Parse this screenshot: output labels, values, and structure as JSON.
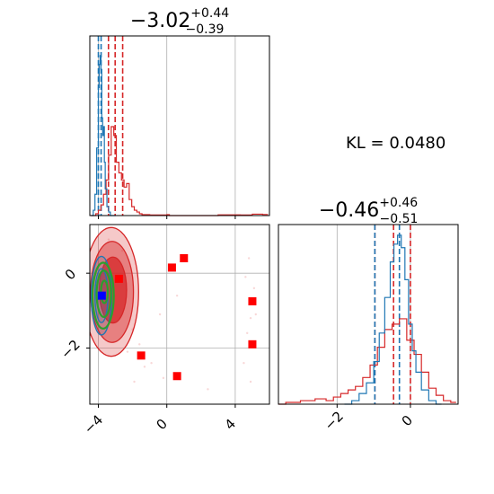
{
  "chart_data": {
    "type": "corner",
    "annotation": "KL = 0.0480",
    "colors": {
      "red": "#d62728",
      "blue": "#1f77b4",
      "green": "#2ca02c",
      "marker_red": "#ff0000",
      "marker_blue": "#0000ff",
      "grid": "#b0b0b0"
    },
    "panels": [
      {
        "id": "hist-param1",
        "type": "histogram",
        "title": {
          "main": "−3.02",
          "sup": "+0.44",
          "sub": "−0.39"
        },
        "xlim": [
          -4.5,
          6.0
        ],
        "x_ticks": [
          -4,
          0,
          4
        ],
        "show_x_tick_labels": false,
        "red_quantile_lines": [
          -3.41,
          -3.02,
          -2.58
        ],
        "blue_quantile_lines": [
          -4.0,
          -3.84
        ],
        "red_hist": [
          [
            -4.45,
            0.0
          ],
          [
            -4.3,
            0.0
          ],
          [
            -4.15,
            0.01
          ],
          [
            -4.0,
            0.03
          ],
          [
            -3.85,
            0.06
          ],
          [
            -3.7,
            0.12
          ],
          [
            -3.55,
            0.2
          ],
          [
            -3.4,
            0.34
          ],
          [
            -3.25,
            0.5
          ],
          [
            -3.1,
            0.45
          ],
          [
            -2.95,
            0.3
          ],
          [
            -2.8,
            0.24
          ],
          [
            -2.65,
            0.2
          ],
          [
            -2.5,
            0.16
          ],
          [
            -2.35,
            0.18
          ],
          [
            -2.2,
            0.09
          ],
          [
            -2.05,
            0.05
          ],
          [
            -1.9,
            0.03
          ],
          [
            -1.75,
            0.02
          ],
          [
            -1.6,
            0.01
          ],
          [
            -1.45,
            0.005
          ],
          [
            -1.0,
            0.003
          ],
          [
            0.0,
            0.005
          ],
          [
            0.15,
            0.0
          ],
          [
            3.0,
            0.004
          ],
          [
            4.3,
            0.003
          ],
          [
            5.0,
            0.008
          ],
          [
            5.6,
            0.006
          ]
        ],
        "blue_hist": [
          [
            -4.4,
            0.0
          ],
          [
            -4.3,
            0.03
          ],
          [
            -4.2,
            0.12
          ],
          [
            -4.1,
            0.38
          ],
          [
            -4.0,
            0.72
          ],
          [
            -3.95,
            0.85
          ],
          [
            -3.9,
            0.9
          ],
          [
            -3.85,
            0.82
          ],
          [
            -3.8,
            0.55
          ],
          [
            -3.75,
            0.45
          ],
          [
            -3.7,
            0.5
          ],
          [
            -3.65,
            0.3
          ],
          [
            -3.6,
            0.15
          ],
          [
            -3.5,
            0.05
          ],
          [
            -3.4,
            0.02
          ],
          [
            -3.3,
            0.0
          ]
        ]
      },
      {
        "id": "hist-param2",
        "type": "histogram",
        "title": {
          "main": "−0.46",
          "sup": "+0.46",
          "sub": "−0.51"
        },
        "xlim": [
          -3.6,
          1.3
        ],
        "x_ticks": [
          -2,
          0
        ],
        "x_tick_labels": [
          "−2",
          "0"
        ],
        "red_quantile_lines": [
          -0.97,
          -0.46,
          0.0
        ],
        "blue_quantile_lines": [
          -0.97,
          -0.3
        ],
        "red_hist": [
          [
            -3.6,
            0.0
          ],
          [
            -3.4,
            0.01
          ],
          [
            -3.0,
            0.02
          ],
          [
            -2.6,
            0.03
          ],
          [
            -2.3,
            0.02
          ],
          [
            -2.1,
            0.04
          ],
          [
            -1.9,
            0.06
          ],
          [
            -1.7,
            0.08
          ],
          [
            -1.5,
            0.1
          ],
          [
            -1.3,
            0.15
          ],
          [
            -1.1,
            0.22
          ],
          [
            -0.9,
            0.32
          ],
          [
            -0.7,
            0.42
          ],
          [
            -0.5,
            0.45
          ],
          [
            -0.3,
            0.48
          ],
          [
            -0.1,
            0.36
          ],
          [
            0.1,
            0.28
          ],
          [
            0.3,
            0.18
          ],
          [
            0.5,
            0.09
          ],
          [
            0.7,
            0.05
          ],
          [
            0.9,
            0.02
          ],
          [
            1.1,
            0.01
          ]
        ],
        "blue_hist": [
          [
            -1.8,
            0.0
          ],
          [
            -1.6,
            0.02
          ],
          [
            -1.4,
            0.06
          ],
          [
            -1.2,
            0.12
          ],
          [
            -1.0,
            0.24
          ],
          [
            -0.85,
            0.4
          ],
          [
            -0.7,
            0.6
          ],
          [
            -0.55,
            0.8
          ],
          [
            -0.45,
            0.9
          ],
          [
            -0.35,
            0.95
          ],
          [
            -0.25,
            0.88
          ],
          [
            -0.15,
            0.7
          ],
          [
            -0.05,
            0.45
          ],
          [
            0.05,
            0.3
          ],
          [
            0.15,
            0.18
          ],
          [
            0.3,
            0.08
          ],
          [
            0.5,
            0.02
          ],
          [
            0.7,
            0.0
          ]
        ]
      },
      {
        "id": "scatter-2d",
        "type": "contour_scatter",
        "xlim": [
          -4.5,
          6.0
        ],
        "ylim": [
          -3.5,
          1.3
        ],
        "x_ticks": [
          -4,
          0,
          4
        ],
        "x_tick_labels": [
          "−4",
          "0",
          "4"
        ],
        "y_ticks": [
          -2,
          0
        ],
        "y_tick_labels": [
          "−2",
          "0"
        ],
        "red_contours": [
          {
            "cx": -3.25,
            "cy": -0.5,
            "rx": 1.6,
            "ry": 1.72,
            "alpha": 0.25
          },
          {
            "cx": -3.2,
            "cy": -0.5,
            "rx": 1.25,
            "ry": 1.35,
            "alpha": 0.45
          },
          {
            "cx": -3.15,
            "cy": -0.45,
            "rx": 0.8,
            "ry": 0.88,
            "alpha": 0.75
          }
        ],
        "blue_contours": [
          {
            "cx": -3.82,
            "cy": -0.6,
            "rx": 0.6,
            "ry": 1.05
          },
          {
            "cx": -3.82,
            "cy": -0.6,
            "rx": 0.38,
            "ry": 0.72
          }
        ],
        "green_contours": [
          {
            "cx": -3.72,
            "cy": -0.6,
            "rx": 0.62,
            "ry": 0.88
          },
          {
            "cx": -3.68,
            "cy": -0.55,
            "rx": 0.42,
            "ry": 0.62
          },
          {
            "cx": -3.65,
            "cy": -0.5,
            "rx": 0.2,
            "ry": 0.3
          }
        ],
        "red_markers": [
          [
            -2.8,
            -0.15
          ],
          [
            0.3,
            0.15
          ],
          [
            1.0,
            0.4
          ],
          [
            -1.5,
            -2.2
          ],
          [
            0.6,
            -2.75
          ],
          [
            5.0,
            -0.75
          ],
          [
            5.0,
            -1.9
          ]
        ],
        "blue_marker": [
          -3.8,
          -0.6
        ],
        "faint_points": [
          [
            -2.0,
            -1.5
          ],
          [
            -1.6,
            -1.9
          ],
          [
            -1.3,
            -2.5
          ],
          [
            -0.9,
            -2.4
          ],
          [
            -2.3,
            -2.1
          ],
          [
            -1.9,
            -2.9
          ],
          [
            4.8,
            0.4
          ],
          [
            4.6,
            -0.1
          ],
          [
            5.1,
            -0.4
          ],
          [
            4.9,
            -1.2
          ],
          [
            4.7,
            -1.6
          ],
          [
            5.2,
            -1.1
          ],
          [
            4.5,
            -2.4
          ],
          [
            4.9,
            -2.9
          ],
          [
            -0.4,
            -1.1
          ],
          [
            0.6,
            -0.6
          ],
          [
            -2.6,
            0.6
          ],
          [
            -3.4,
            0.9
          ],
          [
            2.4,
            -3.1
          ],
          [
            -0.2,
            -2.8
          ]
        ]
      }
    ]
  }
}
